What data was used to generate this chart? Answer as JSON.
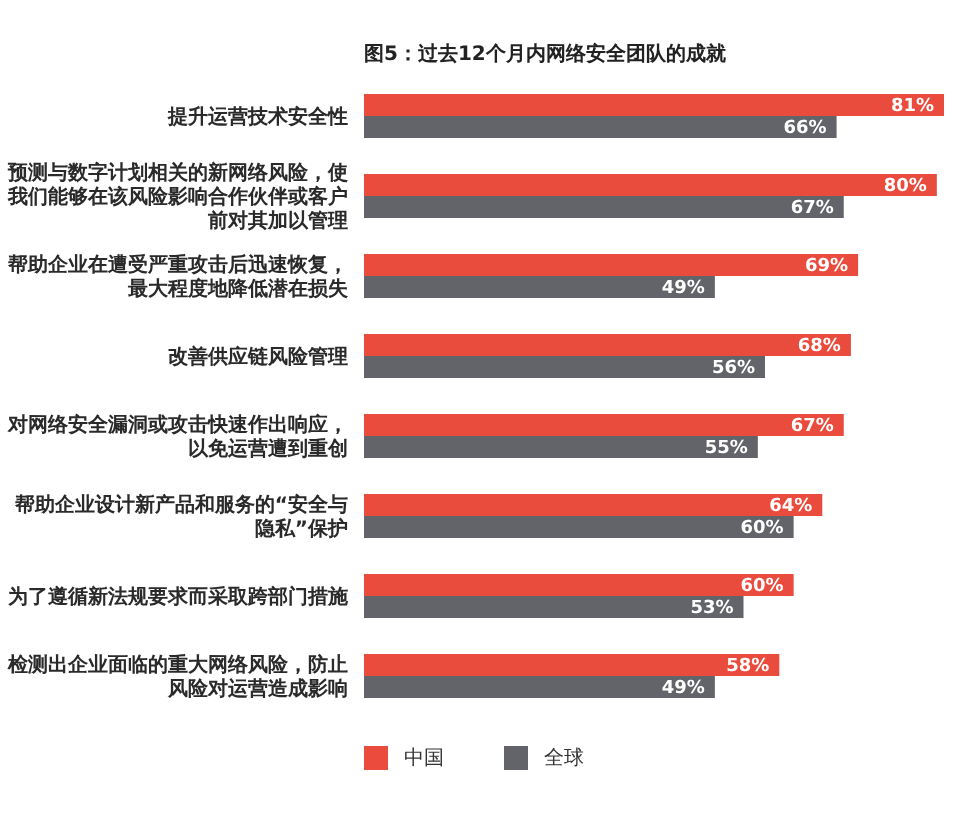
{
  "chart_data": {
    "type": "bar",
    "orientation": "horizontal",
    "title": "图5：过去12个月内网络安全团队的成就",
    "categories": [
      "提升运营技术安全性",
      "预测与数字计划相关的新网络风险，使我们能够在该风险影响合作伙伴或客户前对其加以管理",
      "帮助企业在遭受严重攻击后迅速恢复，最大程度地降低潜在损失",
      "改善供应链风险管理",
      "对网络安全漏洞或攻击快速作出响应，以免运营遭到重创",
      "帮助企业设计新产品和服务的“安全与隐私”保护",
      "为了遵循新法规要求而采取跨部门措施",
      "检测出企业面临的重大网络风险，防止风险对运营造成影响"
    ],
    "series": [
      {
        "name": "中国",
        "color": "#e94b3c",
        "values": [
          81,
          80,
          69,
          68,
          67,
          64,
          60,
          58
        ],
        "value_labels": [
          "81%",
          "80%",
          "69%",
          "68%",
          "67%",
          "64%",
          "60%",
          "58%"
        ]
      },
      {
        "name": "全球",
        "color": "#636469",
        "values": [
          66,
          67,
          49,
          56,
          55,
          60,
          53,
          49
        ],
        "value_labels": [
          "66%",
          "67%",
          "49%",
          "56%",
          "55%",
          "60%",
          "53%",
          "49%"
        ]
      }
    ],
    "legend": "bottom left"
  }
}
